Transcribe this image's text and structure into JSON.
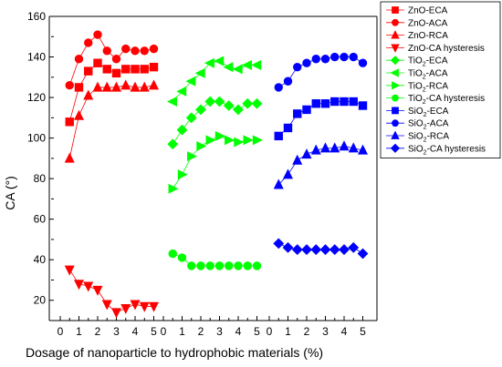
{
  "chart_data": {
    "type": "scatter",
    "xlabel": "Dosage of nanoparticle to hydrophobic materials (%)",
    "ylabel": "CA (°)",
    "ylim": [
      10,
      160
    ],
    "yticks": [
      "20",
      "40",
      "60",
      "80",
      "100",
      "120",
      "140",
      "160"
    ],
    "xticks_per_group": [
      "0",
      "1",
      "2",
      "3",
      "4",
      "5"
    ],
    "legend_position": "top-right",
    "colors": {
      "ZnO": "#ff0000",
      "TiO2": "#00ff00",
      "SiO2": "#0000ff"
    },
    "x": [
      0.5,
      1,
      1.5,
      2,
      2.5,
      3,
      3.5,
      4,
      4.5,
      5
    ],
    "groups": [
      {
        "group": "ZnO",
        "color": "#ff0000",
        "series": [
          {
            "name": "ZnO-ECA",
            "marker": "square",
            "values": [
              108,
              125,
              133,
              137,
              134,
              132,
              134,
              134,
              134,
              135
            ]
          },
          {
            "name": "ZnO-ACA",
            "marker": "circle",
            "values": [
              126,
              139,
              147,
              151,
              143,
              139,
              144,
              143,
              143,
              144
            ]
          },
          {
            "name": "ZnO-RCA",
            "marker": "triangle-up",
            "values": [
              90,
              111,
              121,
              125,
              125,
              125,
              126,
              125,
              125,
              126
            ]
          },
          {
            "name": "ZnO-CA hysteresis",
            "marker": "triangle-down",
            "values": [
              35,
              28,
              27,
              25,
              18,
              14,
              16,
              18,
              17,
              17
            ]
          }
        ]
      },
      {
        "group": "TiO2",
        "color": "#00ff00",
        "series": [
          {
            "name": "TiO2-ECA",
            "legend_base": "TiO",
            "legend_sub": "2",
            "legend_rest": "-ECA",
            "marker": "diamond",
            "values": [
              97,
              104,
              110,
              114,
              118,
              118,
              116,
              114,
              117,
              117
            ]
          },
          {
            "name": "TiO2-ACA",
            "legend_base": "TiO",
            "legend_sub": "2",
            "legend_rest": "-ACA",
            "marker": "triangle-left",
            "values": [
              118,
              123,
              128,
              132,
              137,
              138,
              135,
              134,
              136,
              136
            ]
          },
          {
            "name": "TiO2-RCA",
            "legend_base": "TiO",
            "legend_sub": "2",
            "legend_rest": "-RCA",
            "marker": "triangle-right",
            "values": [
              75,
              82,
              91,
              96,
              99,
              101,
              99,
              98,
              99,
              99
            ]
          },
          {
            "name": "TiO2-CA hysteresis",
            "legend_base": "TiO",
            "legend_sub": "2",
            "legend_rest": "-CA hysteresis",
            "marker": "circle",
            "values": [
              43,
              41,
              37,
              37,
              37,
              37,
              37,
              37,
              37,
              37
            ]
          }
        ]
      },
      {
        "group": "SiO2",
        "color": "#0000ff",
        "series": [
          {
            "name": "SiO2-ECA",
            "legend_base": "SiO",
            "legend_sub": "2",
            "legend_rest": "-ECA",
            "marker": "square",
            "values": [
              101,
              105,
              112,
              114,
              117,
              117,
              118,
              118,
              118,
              116
            ]
          },
          {
            "name": "SiO2-ACA",
            "legend_base": "SiO",
            "legend_sub": "2",
            "legend_rest": "-ACA",
            "marker": "circle",
            "values": [
              125,
              128,
              135,
              137,
              139,
              139,
              140,
              140,
              140,
              137
            ]
          },
          {
            "name": "SiO2-RCA",
            "legend_base": "SiO",
            "legend_sub": "2",
            "legend_rest": "-RCA",
            "marker": "triangle-up",
            "values": [
              77,
              82,
              89,
              92,
              94,
              95,
              95,
              96,
              95,
              94
            ]
          },
          {
            "name": "SiO2-CA hysteresis",
            "legend_base": "SiO",
            "legend_sub": "2",
            "legend_rest": "-CA hysteresis",
            "marker": "diamond",
            "values": [
              48,
              46,
              45,
              45,
              45,
              45,
              45,
              45,
              46,
              43
            ]
          }
        ]
      }
    ]
  }
}
